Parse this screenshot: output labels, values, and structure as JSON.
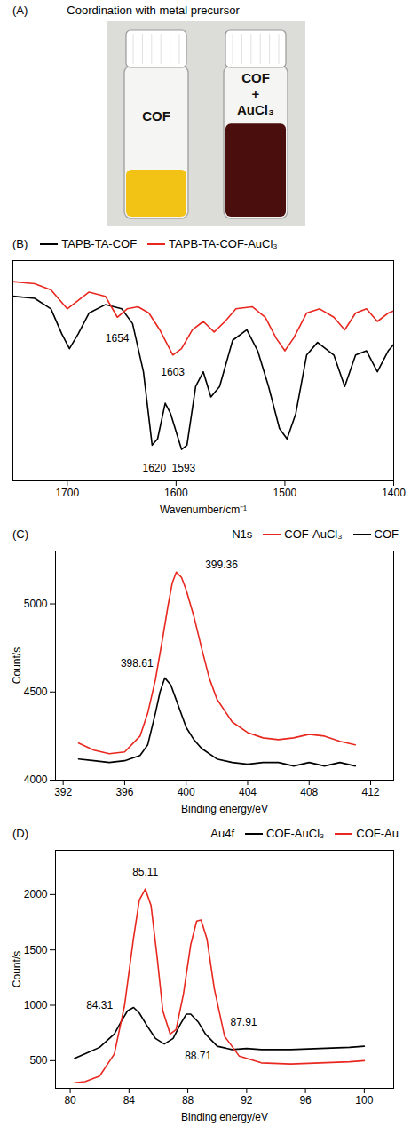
{
  "photo": {
    "panel": "(A)",
    "title": "Coordination with metal precursor",
    "vials": [
      {
        "label": [
          "COF"
        ],
        "color": "#f2c314"
      },
      {
        "label": [
          "COF",
          "+",
          "AuCl₃"
        ],
        "color": "#4a0f0c"
      }
    ]
  },
  "chart_data": [
    {
      "type": "line",
      "panel": "(B)",
      "xlabel": "Wavenumber/cm⁻¹",
      "xlim": [
        1750,
        1400
      ],
      "xticks": [
        1700,
        1600,
        1500,
        1400
      ],
      "ylim": [
        0,
        105
      ],
      "tick_labels": "x",
      "legend": "top-left",
      "series": [
        {
          "name": "TAPB-TA-COF",
          "color": "#000000",
          "x": [
            1750,
            1730,
            1715,
            1705,
            1698,
            1690,
            1680,
            1665,
            1650,
            1640,
            1630,
            1622,
            1617,
            1610,
            1605,
            1595,
            1590,
            1582,
            1575,
            1568,
            1560,
            1548,
            1535,
            1525,
            1515,
            1505,
            1498,
            1490,
            1480,
            1470,
            1455,
            1445,
            1435,
            1425,
            1415,
            1405,
            1400
          ],
          "values": [
            88,
            87,
            82,
            70,
            63,
            70,
            80,
            84,
            82,
            75,
            52,
            17,
            20,
            37,
            32,
            15,
            17,
            45,
            52,
            40,
            45,
            67,
            72,
            62,
            45,
            25,
            20,
            32,
            60,
            66,
            60,
            45,
            60,
            62,
            52,
            62,
            65
          ]
        },
        {
          "name": "TAPB-TA-COF-AuCl₃",
          "color": "#e8271f",
          "x": [
            1750,
            1730,
            1715,
            1700,
            1690,
            1680,
            1665,
            1654,
            1645,
            1635,
            1625,
            1615,
            1603,
            1595,
            1585,
            1575,
            1565,
            1555,
            1545,
            1530,
            1518,
            1508,
            1500,
            1492,
            1480,
            1468,
            1455,
            1445,
            1435,
            1425,
            1415,
            1405,
            1400
          ],
          "values": [
            95,
            94,
            91,
            82,
            86,
            90,
            88,
            78,
            82,
            83,
            80,
            72,
            60,
            63,
            72,
            76,
            71,
            76,
            82,
            83,
            78,
            68,
            62,
            68,
            80,
            82,
            78,
            72,
            80,
            82,
            76,
            80,
            81
          ]
        }
      ],
      "annotations": [
        {
          "text": "1654",
          "x": 1654,
          "y": 68
        },
        {
          "text": "1603",
          "x": 1603,
          "y": 52
        },
        {
          "text": "1620",
          "x": 1620,
          "y": 6
        },
        {
          "text": "1593",
          "x": 1593,
          "y": 6
        }
      ]
    },
    {
      "type": "line",
      "panel": "(C)",
      "xlabel": "Binding energy/eV",
      "ylabel": "Count/s",
      "xlim": [
        391.5,
        413.5
      ],
      "xticks": [
        392,
        396,
        400,
        404,
        408,
        412
      ],
      "ylim": [
        4000,
        5300
      ],
      "yticks": [
        4000,
        4500,
        5000
      ],
      "legend": "top-right",
      "legend_title": "N1s",
      "series": [
        {
          "name": "COF-AuCl₃",
          "color": "#e8271f",
          "x": [
            393,
            394,
            395,
            396,
            397,
            397.5,
            398,
            398.5,
            398.8,
            399.1,
            399.36,
            399.7,
            400,
            400.5,
            401,
            401.5,
            402,
            403,
            404,
            405,
            406,
            407,
            408,
            409,
            410,
            411
          ],
          "values": [
            4210,
            4170,
            4150,
            4160,
            4250,
            4380,
            4570,
            4820,
            4980,
            5120,
            5180,
            5150,
            5080,
            4930,
            4750,
            4580,
            4460,
            4330,
            4270,
            4240,
            4230,
            4240,
            4260,
            4250,
            4220,
            4200
          ]
        },
        {
          "name": "COF",
          "color": "#000000",
          "x": [
            393,
            394,
            395,
            396,
            397,
            397.5,
            398,
            398.3,
            398.61,
            399,
            399.5,
            400,
            400.5,
            401,
            402,
            403,
            404,
            405,
            406,
            407,
            408,
            409,
            410,
            411
          ],
          "values": [
            4120,
            4110,
            4100,
            4110,
            4140,
            4200,
            4380,
            4500,
            4580,
            4540,
            4420,
            4300,
            4230,
            4180,
            4120,
            4100,
            4090,
            4100,
            4100,
            4080,
            4100,
            4080,
            4100,
            4080
          ]
        }
      ],
      "annotations": [
        {
          "text": "399.36",
          "x": 402.3,
          "y": 5220
        },
        {
          "text": "398.61",
          "x": 396.8,
          "y": 4660
        }
      ]
    },
    {
      "type": "line",
      "panel": "(D)",
      "xlabel": "Binding energy/eV",
      "ylabel": "Count/s",
      "xlim": [
        79,
        102
      ],
      "xticks": [
        80,
        84,
        88,
        92,
        96,
        100
      ],
      "ylim": [
        250,
        2400
      ],
      "yticks": [
        500,
        1000,
        1500,
        2000
      ],
      "legend": "top-right",
      "legend_title": "Au4f",
      "series": [
        {
          "name": "COF-AuCl₃",
          "color": "#000000",
          "x": [
            80.3,
            81,
            82,
            83,
            83.5,
            83.9,
            84.31,
            84.7,
            85.2,
            85.8,
            86.4,
            87,
            87.5,
            87.9,
            88.2,
            88.7,
            89.2,
            90,
            91,
            92,
            93,
            95,
            97,
            99,
            100
          ],
          "values": [
            520,
            560,
            620,
            740,
            860,
            950,
            980,
            930,
            820,
            700,
            650,
            700,
            830,
            920,
            920,
            850,
            740,
            630,
            600,
            610,
            600,
            600,
            610,
            620,
            630
          ]
        },
        {
          "name": "COF-Au",
          "color": "#e8271f",
          "x": [
            80.3,
            81,
            82,
            83,
            83.7,
            84.3,
            84.7,
            85.11,
            85.5,
            85.9,
            86.3,
            86.8,
            87.2,
            87.7,
            88.2,
            88.6,
            88.9,
            89.3,
            89.8,
            90.5,
            91.5,
            93,
            95,
            97,
            99,
            100
          ],
          "values": [
            300,
            310,
            360,
            560,
            1000,
            1600,
            1950,
            2050,
            1900,
            1450,
            950,
            740,
            780,
            1100,
            1550,
            1760,
            1770,
            1600,
            1150,
            720,
            540,
            480,
            470,
            480,
            490,
            500
          ]
        }
      ],
      "annotations": [
        {
          "text": "85.11",
          "x": 85.11,
          "y": 2200
        },
        {
          "text": "84.31",
          "x": 82.0,
          "y": 1000
        },
        {
          "text": "88.71",
          "x": 88.7,
          "y": 540
        },
        {
          "text": "87.91",
          "x": 91.8,
          "y": 850
        }
      ]
    }
  ]
}
